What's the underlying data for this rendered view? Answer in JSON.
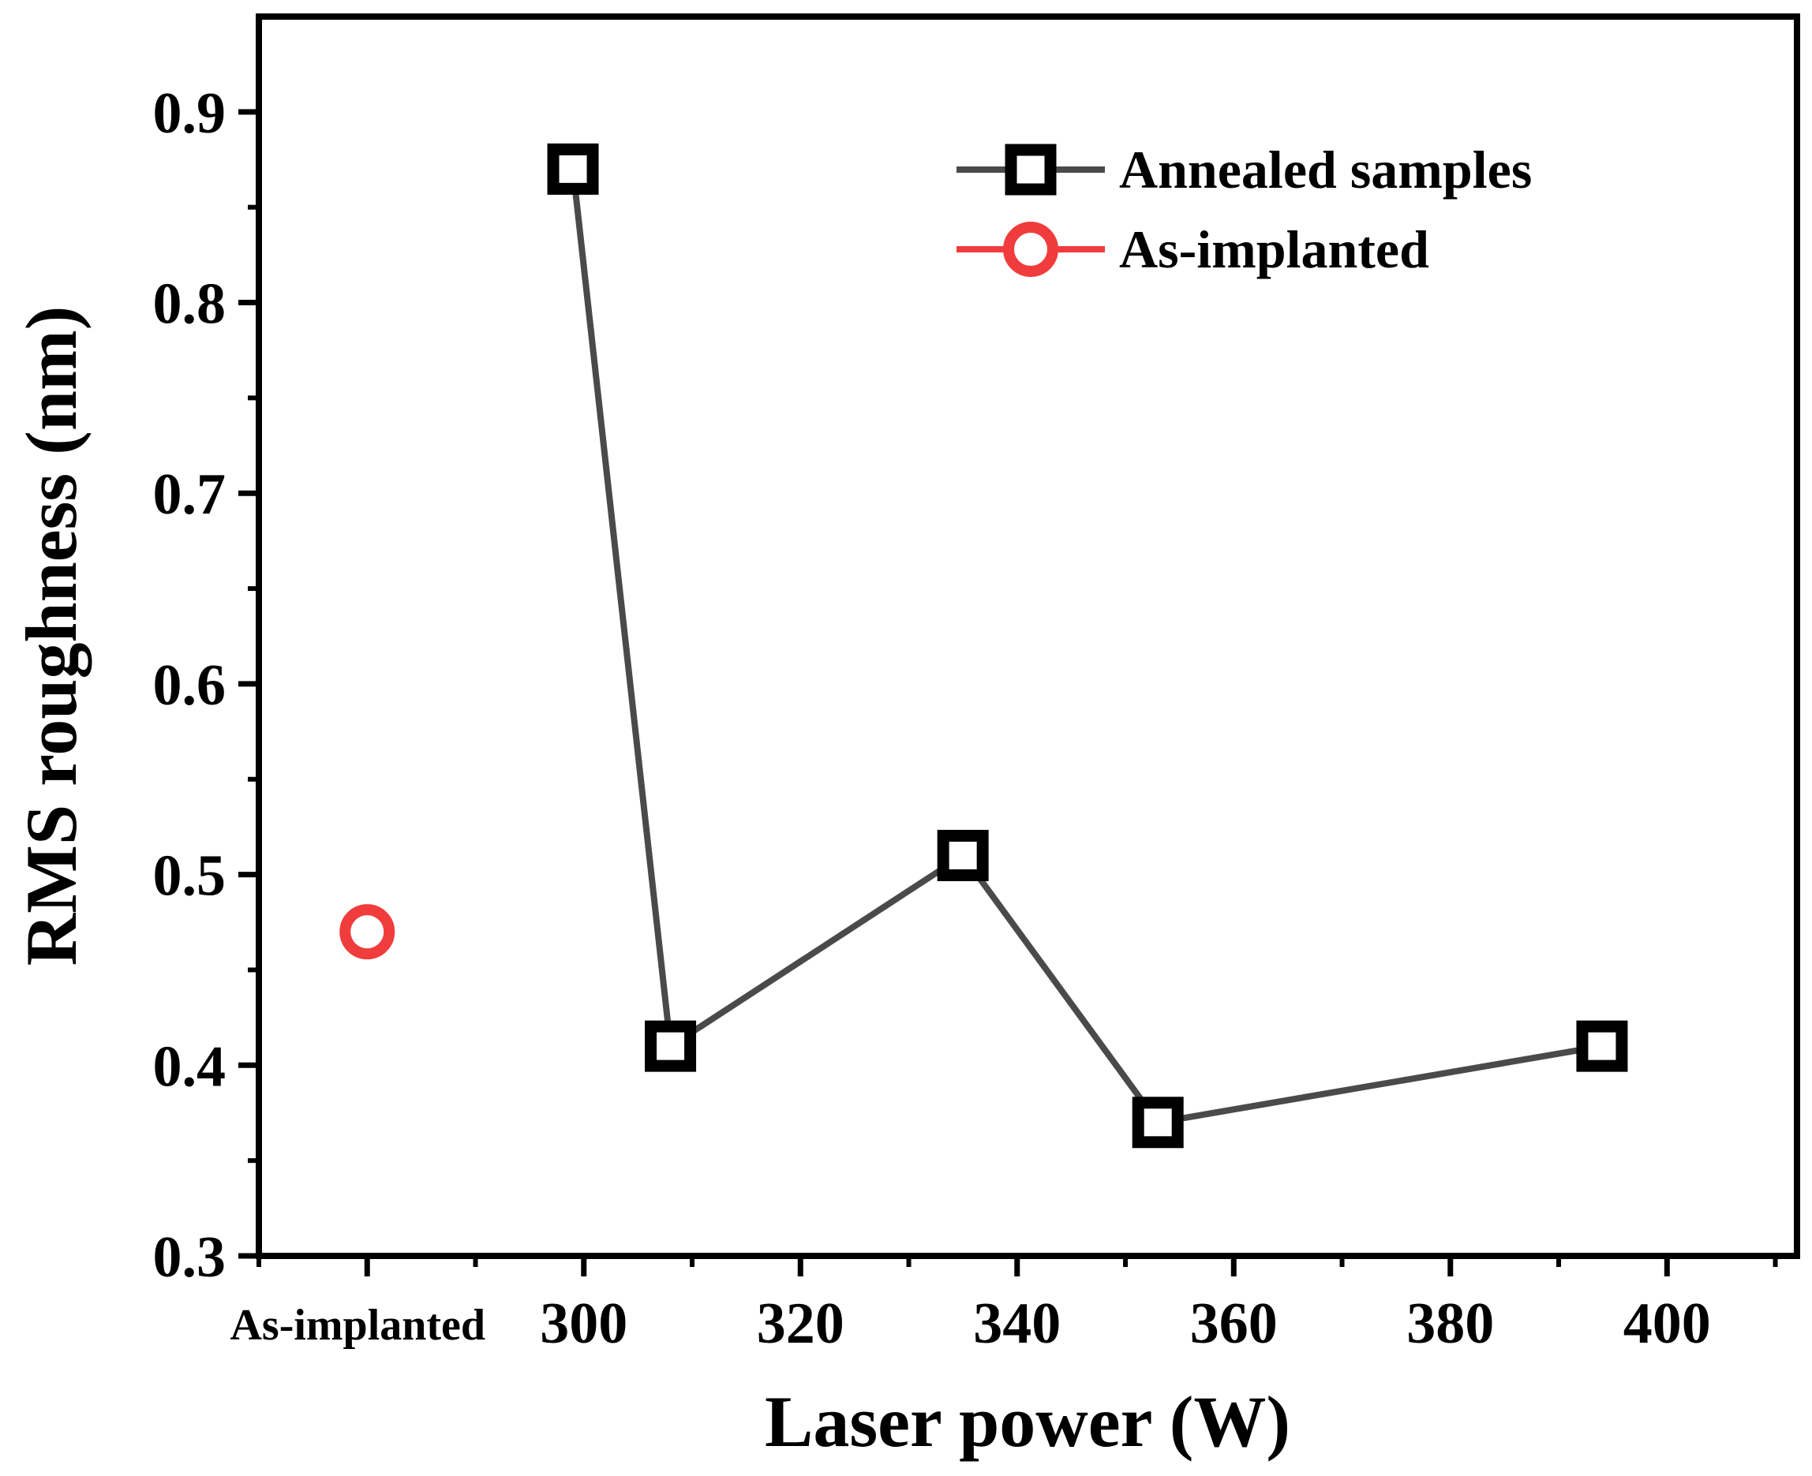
{
  "chart_data": {
    "type": "scatter",
    "xlabel": "Laser power (W)",
    "ylabel": "RMS roughness (nm)",
    "xlim": [
      270,
      412
    ],
    "ylim": [
      0.3,
      0.95
    ],
    "x_ticks": [
      300,
      320,
      340,
      360,
      380,
      400
    ],
    "x_tick_labels": [
      "300",
      "320",
      "340",
      "360",
      "380",
      "400"
    ],
    "x_minor_ticks": [
      270,
      290,
      310,
      330,
      350,
      370,
      390,
      410
    ],
    "y_ticks": [
      0.3,
      0.4,
      0.5,
      0.6,
      0.7,
      0.8,
      0.9
    ],
    "y_tick_labels": [
      "0.3",
      "0.4",
      "0.5",
      "0.6",
      "0.7",
      "0.8",
      "0.9"
    ],
    "y_minor_ticks": [
      0.35,
      0.45,
      0.55,
      0.65,
      0.75,
      0.85
    ],
    "category_label": {
      "text": "As-implanted",
      "x": 280
    },
    "legend_position": "top-right",
    "series": [
      {
        "name": "Annealed samples",
        "marker": "square",
        "line": true,
        "line_color": "#4a4a4a",
        "marker_color": "#000000",
        "x": [
          299,
          308,
          335,
          353,
          394
        ],
        "y": [
          0.87,
          0.41,
          0.51,
          0.37,
          0.41
        ]
      },
      {
        "name": "As-implanted",
        "marker": "circle",
        "line": false,
        "line_color": "#f03c3c",
        "marker_color": "#f03c3c",
        "x": [
          280
        ],
        "y": [
          0.47
        ]
      }
    ]
  }
}
